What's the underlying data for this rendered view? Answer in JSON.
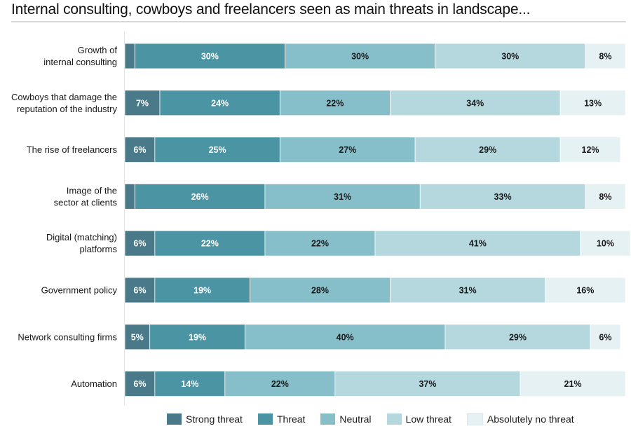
{
  "chart_data": {
    "type": "bar",
    "orientation": "horizontal",
    "stacked": true,
    "normalized_percent": true,
    "title": "Internal consulting, cowboys and freelancers seen as main threats in landscape...",
    "xlabel": "",
    "ylabel": "",
    "xlim": [
      0,
      100
    ],
    "grid": false,
    "legend_position": "bottom",
    "categories": [
      "Growth of internal consulting",
      "Cowboys that damage the reputation of the industry",
      "The rise of freelancers",
      "Image of the sector at clients",
      "Digital (matching) platforms",
      "Government policy",
      "Network consulting firms",
      "Automation"
    ],
    "category_label_lines": [
      [
        "Growth of",
        "internal consulting"
      ],
      [
        "Cowboys that damage the",
        "reputation of the industry"
      ],
      [
        "The rise of freelancers"
      ],
      [
        "Image of the",
        "sector at clients"
      ],
      [
        "Digital (matching)",
        "platforms"
      ],
      [
        "Government policy"
      ],
      [
        "Network consulting firms"
      ],
      [
        "Automation"
      ]
    ],
    "series": [
      {
        "name": "Strong threat",
        "color": "#4a7a8a",
        "label_color": "#ffffff",
        "values": [
          2,
          7,
          6,
          2,
          6,
          6,
          5,
          6
        ],
        "labels": [
          "",
          "7%",
          "6%",
          "",
          "6%",
          "6%",
          "5%",
          "6%"
        ]
      },
      {
        "name": "Threat",
        "color": "#4b94a4",
        "label_color": "#ffffff",
        "values": [
          30,
          24,
          25,
          26,
          22,
          19,
          19,
          14
        ],
        "labels": [
          "30%",
          "24%",
          "25%",
          "26%",
          "22%",
          "19%",
          "19%",
          "14%"
        ]
      },
      {
        "name": "Neutral",
        "color": "#86bfca",
        "label_color": "#1a1a1a",
        "values": [
          30,
          22,
          27,
          31,
          22,
          28,
          40,
          22
        ],
        "labels": [
          "30%",
          "22%",
          "27%",
          "31%",
          "22%",
          "28%",
          "40%",
          "22%"
        ]
      },
      {
        "name": "Low threat",
        "color": "#b5d8df",
        "label_color": "#1a1a1a",
        "values": [
          30,
          34,
          29,
          33,
          41,
          31,
          29,
          37
        ],
        "labels": [
          "30%",
          "34%",
          "29%",
          "33%",
          "41%",
          "31%",
          "29%",
          "37%"
        ]
      },
      {
        "name": "Absolutely no threat",
        "color": "#e6f1f3",
        "label_color": "#1a1a1a",
        "values": [
          8,
          13,
          12,
          8,
          10,
          16,
          6,
          21
        ],
        "labels": [
          "8%",
          "13%",
          "12%",
          "8%",
          "10%",
          "16%",
          "6%",
          "21%"
        ]
      }
    ]
  }
}
